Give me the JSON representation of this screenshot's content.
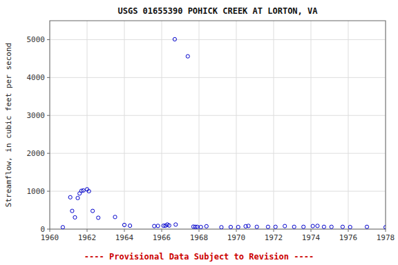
{
  "chart_data": {
    "type": "scatter",
    "title": "USGS 01655390 POHICK CREEK AT LORTON, VA",
    "ylabel": "Streamflow, in cubic feet per second",
    "annotation": {
      "text": "---- Provisional Data Subject to Revision ----",
      "color": "#cc0000"
    },
    "color": "#0000CC",
    "grid": true,
    "xlim": [
      1960,
      1978
    ],
    "ylim": [
      0,
      5500
    ],
    "xticks": [
      1960,
      1962,
      1964,
      1966,
      1968,
      1970,
      1972,
      1974,
      1976,
      1978
    ],
    "yticks": [
      0,
      1000,
      2000,
      3000,
      4000,
      5000
    ],
    "x": [
      1960.7,
      1961.1,
      1961.2,
      1961.35,
      1961.5,
      1961.6,
      1961.7,
      1961.8,
      1962.0,
      1962.1,
      1962.3,
      1962.6,
      1963.5,
      1964.0,
      1964.3,
      1965.6,
      1965.8,
      1966.1,
      1966.2,
      1966.3,
      1966.4,
      1966.7,
      1966.75,
      1967.4,
      1967.7,
      1967.8,
      1967.9,
      1968.1,
      1968.4,
      1969.2,
      1969.7,
      1970.1,
      1970.5,
      1970.65,
      1971.1,
      1971.7,
      1972.1,
      1972.6,
      1973.1,
      1973.6,
      1974.1,
      1974.35,
      1974.7,
      1975.1,
      1975.7,
      1976.1,
      1977.0,
      1978.0
    ],
    "values": [
      50,
      840,
      480,
      310,
      820,
      940,
      1010,
      1020,
      1050,
      1000,
      480,
      300,
      320,
      110,
      90,
      80,
      85,
      90,
      90,
      120,
      95,
      5010,
      120,
      4560,
      65,
      60,
      60,
      55,
      75,
      50,
      55,
      55,
      75,
      85,
      60,
      60,
      60,
      80,
      60,
      60,
      80,
      85,
      60,
      60,
      60,
      55,
      60,
      50
    ]
  }
}
